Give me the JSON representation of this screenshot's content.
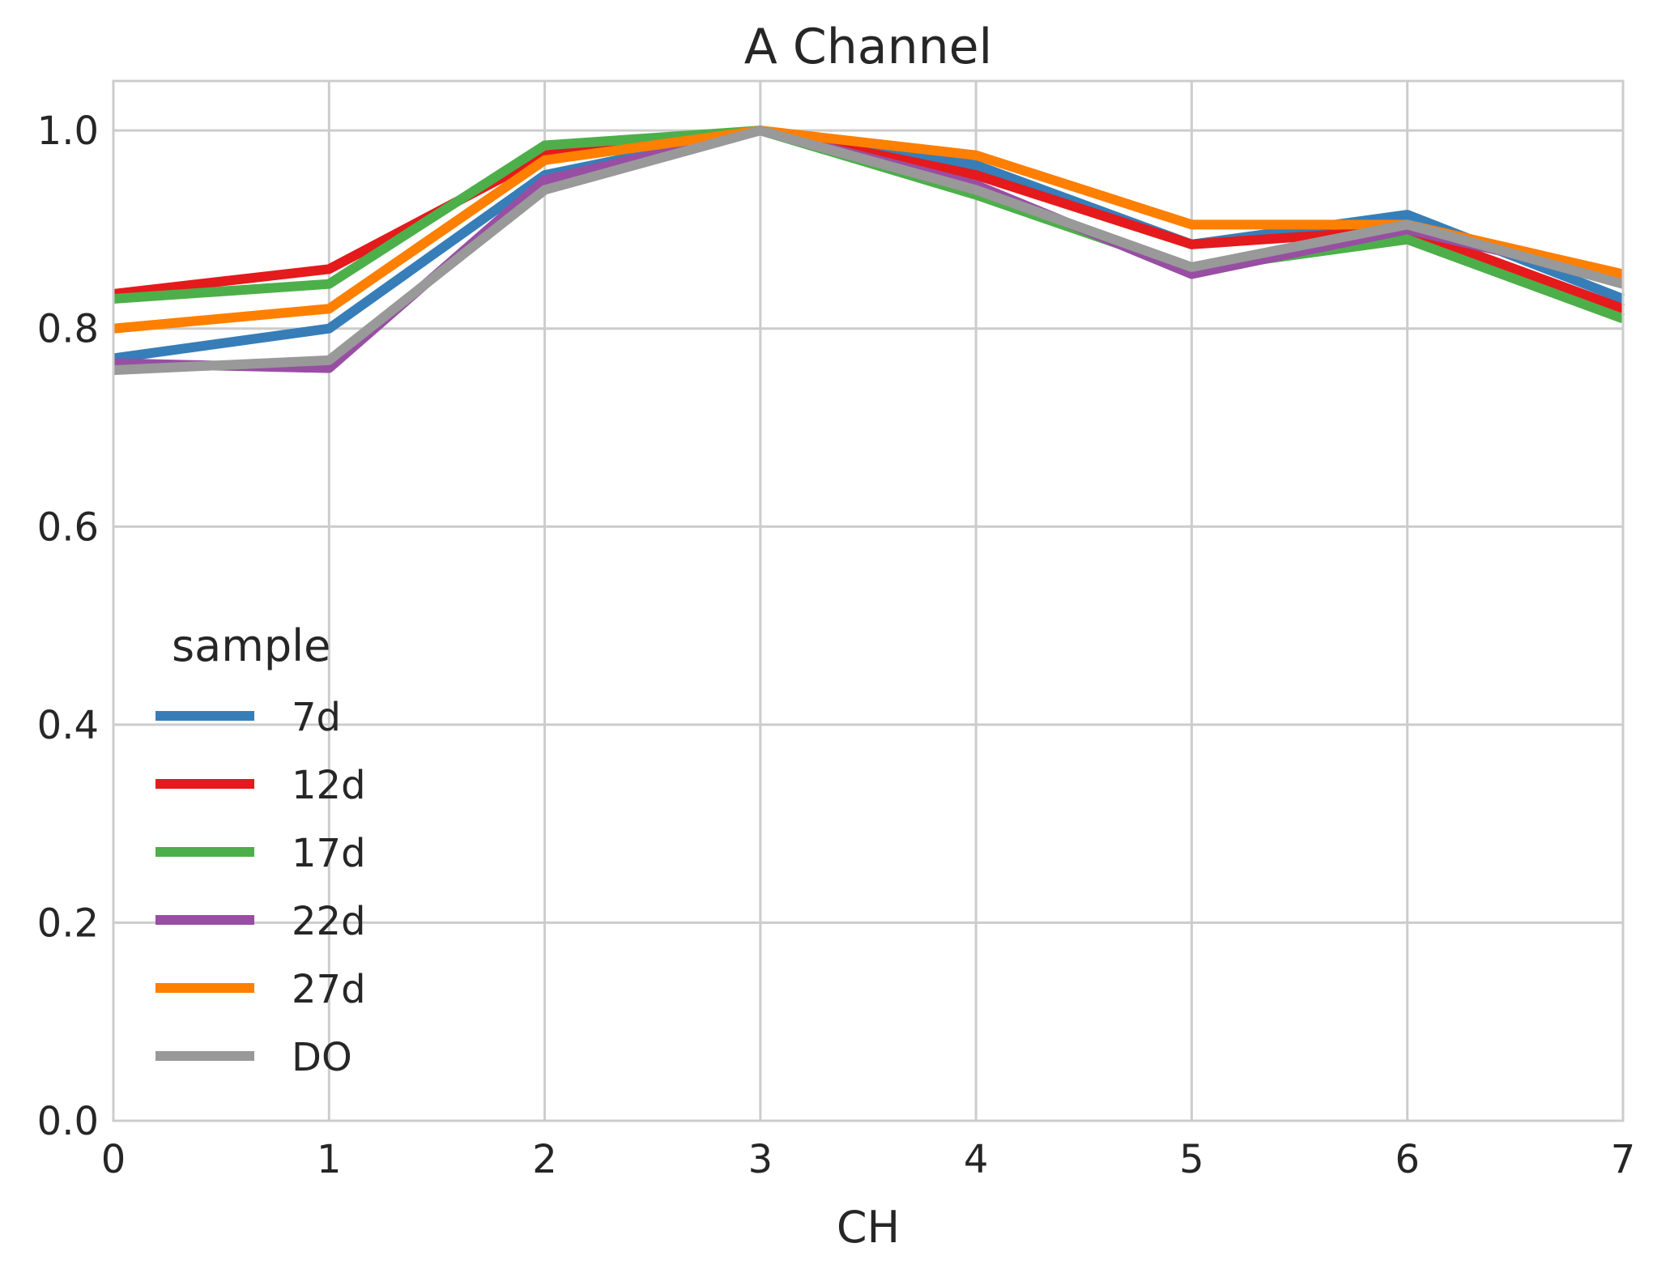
{
  "chart_data": {
    "type": "line",
    "title": "A Channel",
    "xlabel": "CH",
    "ylabel": "",
    "x": [
      0,
      1,
      2,
      3,
      4,
      5,
      6,
      7
    ],
    "xlim": [
      0,
      7
    ],
    "ylim": [
      0,
      1.05
    ],
    "xticks": [
      "0",
      "1",
      "2",
      "3",
      "4",
      "5",
      "6",
      "7"
    ],
    "yticks": [
      "0.0",
      "0.2",
      "0.4",
      "0.6",
      "0.8",
      "1.0"
    ],
    "grid": true,
    "legend": {
      "title": "sample",
      "placement": "lower-left"
    },
    "series": [
      {
        "name": "7d",
        "color": "#377eb8",
        "values": [
          0.77,
          0.8,
          0.955,
          1.0,
          0.965,
          0.885,
          0.915,
          0.83
        ]
      },
      {
        "name": "12d",
        "color": "#e41a1c",
        "values": [
          0.835,
          0.86,
          0.975,
          1.0,
          0.955,
          0.885,
          0.9,
          0.82
        ]
      },
      {
        "name": "17d",
        "color": "#4daf4a",
        "values": [
          0.83,
          0.845,
          0.985,
          1.0,
          0.935,
          0.86,
          0.89,
          0.81
        ]
      },
      {
        "name": "22d",
        "color": "#984ea3",
        "values": [
          0.765,
          0.76,
          0.95,
          1.0,
          0.945,
          0.855,
          0.9,
          0.85
        ]
      },
      {
        "name": "27d",
        "color": "#ff7f00",
        "values": [
          0.8,
          0.82,
          0.97,
          1.0,
          0.975,
          0.905,
          0.905,
          0.855
        ]
      },
      {
        "name": "DO",
        "color": "#999999",
        "values": [
          0.758,
          0.768,
          0.94,
          1.0,
          0.94,
          0.862,
          0.905,
          0.845
        ]
      }
    ]
  }
}
